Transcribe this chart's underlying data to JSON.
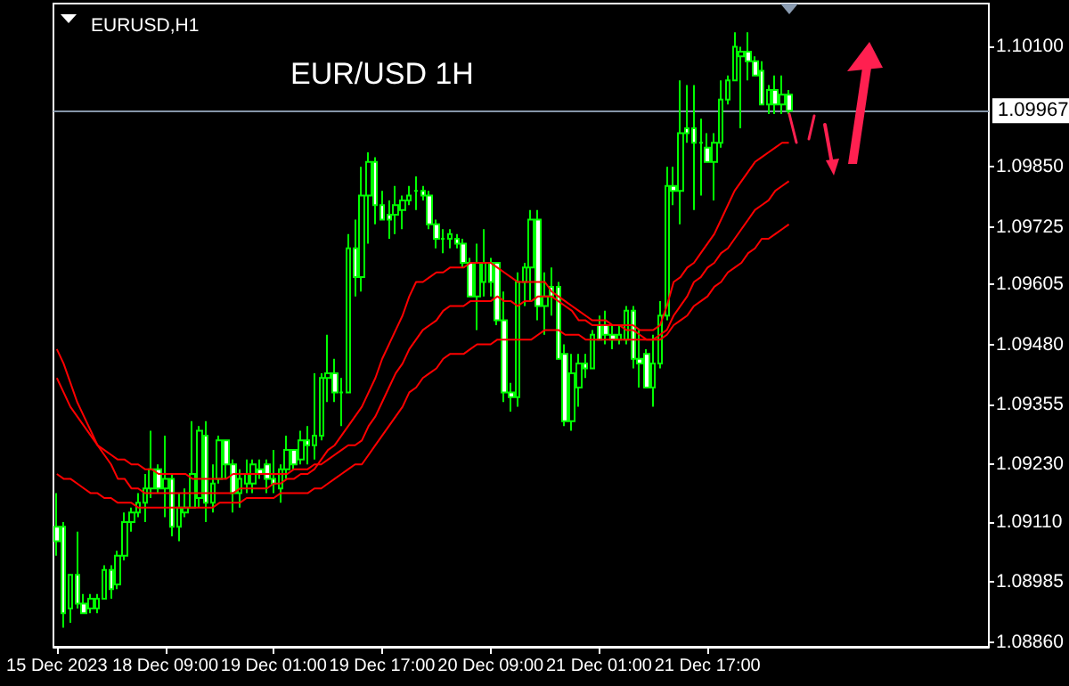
{
  "chart_data": {
    "type": "candlestick",
    "title": "EUR/USD 1H",
    "subtitle": "EURUSD,H1",
    "categories": [
      "15 Dec 2023",
      null,
      null,
      null,
      null,
      null,
      null,
      null,
      null,
      null,
      null,
      null,
      null,
      null,
      null,
      null,
      "18 Dec 09:00",
      null,
      null,
      null,
      null,
      null,
      null,
      null,
      null,
      null,
      null,
      null,
      null,
      null,
      null,
      null,
      "19 Dec 01:00",
      null,
      null,
      null,
      null,
      null,
      null,
      null,
      null,
      null,
      null,
      null,
      null,
      null,
      null,
      null,
      "19 Dec 17:00",
      null,
      null,
      null,
      null,
      null,
      null,
      null,
      null,
      null,
      null,
      null,
      null,
      null,
      null,
      null,
      "20 Dec 09:00",
      null,
      null,
      null,
      null,
      null,
      null,
      null,
      null,
      null,
      null,
      null,
      null,
      null,
      null,
      null,
      "21 Dec 01:00",
      null,
      null,
      null,
      null,
      null,
      null,
      null,
      null,
      null,
      null,
      null,
      null,
      null,
      null,
      null,
      "21 Dec 17:00",
      null,
      null,
      null,
      null,
      null,
      null,
      null,
      null,
      null,
      null,
      null,
      null,
      null,
      null,
      null,
      null,
      null,
      null,
      null,
      null,
      null,
      null,
      null,
      null,
      null,
      null,
      null,
      null,
      null,
      null,
      null,
      null,
      null,
      null,
      null,
      null,
      null,
      null,
      null,
      null,
      null
    ],
    "color": "#00ff00",
    "ohlc": [
      [
        1.091,
        1.0917,
        1.0904,
        1.0907
      ],
      [
        1.091,
        1.0911,
        1.0889,
        1.0892
      ],
      [
        1.0893,
        1.09,
        1.089,
        1.09
      ],
      [
        1.09,
        1.0909,
        1.0893,
        1.0894
      ],
      [
        1.0894,
        1.0896,
        1.0892,
        1.0892
      ],
      [
        1.0893,
        1.0896,
        1.0892,
        1.0895
      ],
      [
        1.0893,
        1.0896,
        1.0892,
        1.0895
      ],
      [
        1.0895,
        1.0902,
        1.0895,
        1.0901
      ],
      [
        1.0901,
        1.0902,
        1.0895,
        1.0897
      ],
      [
        1.0898,
        1.0905,
        1.0897,
        1.0904
      ],
      [
        1.0904,
        1.0913,
        1.0903,
        1.0911
      ],
      [
        1.0911,
        1.0914,
        1.0909,
        1.0913
      ],
      [
        1.0913,
        1.0917,
        1.0912,
        1.0915
      ],
      [
        1.0915,
        1.0921,
        1.0911,
        1.0918
      ],
      [
        1.0918,
        1.093,
        1.0916,
        1.0922
      ],
      [
        1.0922,
        1.0923,
        1.0917,
        1.0918
      ],
      [
        1.0918,
        1.0929,
        1.0912,
        1.092
      ],
      [
        1.092,
        1.0921,
        1.0908,
        1.091
      ],
      [
        1.091,
        1.0917,
        1.0907,
        1.0914
      ],
      [
        1.0913,
        1.0918,
        1.0912,
        1.0914
      ],
      [
        1.0914,
        1.0932,
        1.0914,
        1.0921
      ],
      [
        1.0916,
        1.0931,
        1.0914,
        1.093
      ],
      [
        1.0929,
        1.0932,
        1.0911,
        1.0915
      ],
      [
        1.0915,
        1.0923,
        1.0913,
        1.0919
      ],
      [
        1.092,
        1.0929,
        1.0919,
        1.0928
      ],
      [
        1.0928,
        1.0928,
        1.092,
        1.0923
      ],
      [
        1.0923,
        1.0924,
        1.0913,
        1.0917
      ],
      [
        1.0917,
        1.0922,
        1.0914,
        1.092
      ],
      [
        1.0919,
        1.0924,
        1.0917,
        1.0921
      ],
      [
        1.0919,
        1.0924,
        1.0917,
        1.0923
      ],
      [
        1.0922,
        1.0924,
        1.092,
        1.0921
      ],
      [
        1.0923,
        1.0924,
        1.0917,
        1.092
      ],
      [
        1.092,
        1.0926,
        1.0917,
        1.0919
      ],
      [
        1.0918,
        1.0923,
        1.0915,
        1.0922
      ],
      [
        1.0922,
        1.0929,
        1.092,
        1.0926
      ],
      [
        1.0926,
        1.0926,
        1.0922,
        1.0923
      ],
      [
        1.0924,
        1.093,
        1.0923,
        1.0928
      ],
      [
        1.0928,
        1.0931,
        1.0923,
        1.0927
      ],
      [
        1.0927,
        1.0942,
        1.0924,
        1.0929
      ],
      [
        1.0929,
        1.0942,
        1.0928,
        1.0941
      ],
      [
        1.0941,
        1.095,
        1.0936,
        1.0942
      ],
      [
        1.0942,
        1.0945,
        1.0936,
        1.0938
      ],
      [
        1.0938,
        1.0941,
        1.0931,
        1.0938
      ],
      [
        1.0938,
        1.0971,
        1.0938,
        1.0968
      ],
      [
        1.0968,
        1.0974,
        1.0958,
        1.0962
      ],
      [
        1.0962,
        1.0985,
        1.0959,
        1.0979
      ],
      [
        1.0979,
        1.0988,
        1.0969,
        1.0986
      ],
      [
        1.0986,
        1.0987,
        1.0973,
        1.0977
      ],
      [
        1.0977,
        1.098,
        1.0974,
        1.0974
      ],
      [
        1.0975,
        1.0978,
        1.097,
        1.0974
      ],
      [
        1.0975,
        1.0981,
        1.0971,
        1.0977
      ],
      [
        1.0976,
        1.0979,
        1.0972,
        1.0978
      ],
      [
        1.0978,
        1.0981,
        1.0977,
        1.0979
      ],
      [
        1.098,
        1.0983,
        1.0976,
        1.098
      ],
      [
        1.098,
        1.0981,
        1.0978,
        1.0979
      ],
      [
        1.0979,
        1.098,
        1.0972,
        1.0973
      ],
      [
        1.0973,
        1.0974,
        1.0968,
        1.097
      ],
      [
        1.097,
        1.0972,
        1.0967,
        1.097
      ],
      [
        1.097,
        1.0972,
        1.0968,
        1.0971
      ],
      [
        1.097,
        1.0971,
        1.0968,
        1.0969
      ],
      [
        1.0969,
        1.097,
        1.0964,
        1.0965
      ],
      [
        1.0965,
        1.0966,
        1.0958,
        1.0958
      ],
      [
        1.0958,
        1.0969,
        1.0951,
        1.0965
      ],
      [
        1.0961,
        1.0972,
        1.0958,
        1.0965
      ],
      [
        1.0965,
        1.0966,
        1.0958,
        1.0961
      ],
      [
        1.0965,
        1.0965,
        1.0952,
        1.0953
      ],
      [
        1.0953,
        1.0959,
        1.0936,
        1.0938
      ],
      [
        1.0938,
        1.094,
        1.0934,
        1.0937
      ],
      [
        1.0937,
        1.0963,
        1.0935,
        1.0961
      ],
      [
        1.0961,
        1.0965,
        1.0956,
        1.0964
      ],
      [
        1.0964,
        1.0976,
        1.0957,
        1.0974
      ],
      [
        1.0974,
        1.0976,
        1.0953,
        1.0956
      ],
      [
        1.0956,
        1.0963,
        1.095,
        1.0958
      ],
      [
        1.096,
        1.0964,
        1.0954,
        1.0958
      ],
      [
        1.096,
        1.0961,
        1.0945,
        1.0945
      ],
      [
        1.0946,
        1.0948,
        1.0931,
        1.0932
      ],
      [
        1.0932,
        1.0946,
        1.093,
        1.0942
      ],
      [
        1.0939,
        1.0946,
        1.0935,
        1.0944
      ],
      [
        1.0944,
        1.0946,
        1.0941,
        1.0943
      ],
      [
        1.0943,
        1.0951,
        1.0943,
        1.095
      ],
      [
        1.0952,
        1.0954,
        1.0949,
        1.0949
      ],
      [
        1.0952,
        1.0955,
        1.0948,
        1.095
      ],
      [
        1.095,
        1.0952,
        1.0947,
        1.0949
      ],
      [
        1.0949,
        1.0952,
        1.0948,
        1.095
      ],
      [
        1.0949,
        1.0956,
        1.0948,
        1.0955
      ],
      [
        1.0955,
        1.0956,
        1.0943,
        1.0945
      ],
      [
        1.0945,
        1.0951,
        1.0939,
        1.0944
      ],
      [
        1.0946,
        1.0947,
        1.0939,
        1.0939
      ],
      [
        1.0939,
        1.095,
        1.0935,
        1.0944
      ],
      [
        1.0944,
        1.0957,
        1.0943,
        1.0954
      ],
      [
        1.0954,
        1.0985,
        1.0953,
        1.0981
      ],
      [
        1.0981,
        1.0985,
        1.0977,
        1.098
      ],
      [
        1.098,
        1.1003,
        1.0973,
        1.0992
      ],
      [
        1.0993,
        1.1002,
        1.099,
        1.0992
      ],
      [
        1.0993,
        1.1002,
        1.0976,
        1.099
      ],
      [
        1.099,
        1.0995,
        1.0979,
        1.099
      ],
      [
        1.0989,
        1.0992,
        1.0986,
        1.0986
      ],
      [
        1.0986,
        1.0992,
        1.0978,
        1.099
      ],
      [
        1.099,
        1.1003,
        1.0989,
        1.0999
      ],
      [
        1.0999,
        1.1004,
        1.0998,
        1.1003
      ],
      [
        1.1003,
        1.1013,
        1.1003,
        1.101
      ],
      [
        1.1008,
        1.101,
        1.0993,
        1.1009
      ],
      [
        1.1009,
        1.1013,
        1.1003,
        1.1007
      ],
      [
        1.1007,
        1.1008,
        1.1004,
        1.1004
      ],
      [
        1.1005,
        1.1007,
        1.0998,
        1.0998
      ],
      [
        1.0998,
        1.1002,
        1.0996,
        1.1001
      ],
      [
        1.1001,
        1.1004,
        1.0996,
        1.0998
      ],
      [
        1.0998,
        1.1004,
        1.0996,
        1.1
      ],
      [
        1.1,
        1.1001,
        1.0996,
        1.09967
      ],
      null,
      null,
      null,
      null,
      null,
      null,
      null,
      null,
      null,
      null,
      null,
      null,
      null,
      null,
      null,
      null,
      null,
      null,
      null,
      null,
      null,
      null,
      null,
      null,
      null,
      null,
      null,
      null,
      null
    ],
    "series": [
      {
        "type": "line",
        "color": "#ff0000",
        "values": [
          1.0947,
          1.0944,
          1.094,
          1.0936,
          1.0933,
          1.093,
          1.0927,
          1.0925,
          1.0923,
          1.092,
          1.092,
          1.0918,
          1.0918,
          1.0917,
          1.0917,
          1.0917,
          1.0917,
          1.0917,
          1.0917,
          1.0917,
          1.0917,
          1.0917,
          1.0917,
          1.0917,
          1.0917,
          1.0917,
          1.0917,
          1.0918,
          1.0918,
          1.0918,
          1.0918,
          1.0918,
          1.0919,
          1.0919,
          1.092,
          1.092,
          1.0921,
          1.0921,
          1.0922,
          1.0924,
          1.0926,
          1.0927,
          1.0929,
          1.0931,
          1.0933,
          1.0935,
          1.0938,
          1.0941,
          1.0945,
          1.0948,
          1.0951,
          1.0954,
          1.0958,
          1.0961,
          1.0961,
          1.0962,
          1.0963,
          1.0963,
          1.0964,
          1.0964,
          1.0964,
          1.0965,
          1.0965,
          1.0965,
          1.0965,
          1.0964,
          1.0963,
          1.0962,
          1.0961,
          1.0961,
          1.0961,
          1.0961,
          1.0961,
          1.0959,
          1.0958,
          1.0957,
          1.0956,
          1.0955,
          1.0954,
          1.0953,
          1.0953,
          1.0953,
          1.0952,
          1.0952,
          1.0952,
          1.0952,
          1.0951,
          1.0951,
          1.0951,
          1.0952,
          1.0956,
          1.0961,
          1.0962,
          1.0964,
          1.0965,
          1.0967,
          1.0969,
          1.0971,
          1.0974,
          1.0977,
          1.098,
          1.0982,
          1.0984,
          1.0986,
          1.0987,
          1.0988,
          1.0989,
          1.099,
          1.099,
          null,
          null,
          null,
          null,
          null,
          null,
          null,
          null,
          null,
          null,
          null,
          null,
          null,
          null,
          null,
          null,
          null,
          null,
          null,
          null,
          null,
          null,
          null,
          null,
          null,
          null,
          null,
          null,
          null
        ]
      },
      {
        "type": "line",
        "color": "#ff0000",
        "values": [
          1.0941,
          1.0938,
          1.0935,
          1.0933,
          1.0931,
          1.0929,
          1.0927,
          1.0926,
          1.0925,
          1.0924,
          1.0924,
          1.0923,
          1.0923,
          1.0922,
          1.0922,
          1.0921,
          1.0921,
          1.0921,
          1.0921,
          1.0921,
          1.092,
          1.092,
          1.092,
          1.092,
          1.092,
          1.092,
          1.0921,
          1.0921,
          1.0921,
          1.0921,
          1.0921,
          1.0921,
          1.0921,
          1.0921,
          1.0921,
          1.0922,
          1.0922,
          1.0922,
          1.0923,
          1.0923,
          1.0924,
          1.0925,
          1.0926,
          1.0927,
          1.0927,
          1.0928,
          1.0931,
          1.0933,
          1.0936,
          1.0939,
          1.0942,
          1.0944,
          1.0947,
          1.0949,
          1.0951,
          1.0952,
          1.0953,
          1.0955,
          1.0956,
          1.0956,
          1.0956,
          1.0957,
          1.0957,
          1.0957,
          1.0957,
          1.0958,
          1.0957,
          1.0957,
          1.0956,
          1.0957,
          1.0957,
          1.0958,
          1.0958,
          1.0958,
          1.0957,
          1.0956,
          1.0955,
          1.0953,
          1.0953,
          1.0952,
          1.0952,
          1.0952,
          1.0952,
          1.0952,
          1.0951,
          1.0951,
          1.095,
          1.0949,
          1.0949,
          1.095,
          1.0951,
          1.0954,
          1.0956,
          1.0958,
          1.0961,
          1.0962,
          1.0964,
          1.0965,
          1.0967,
          1.0968,
          1.097,
          1.0972,
          1.0974,
          1.0976,
          1.0977,
          1.0978,
          1.098,
          1.0981,
          1.0982,
          null,
          null,
          null,
          null,
          null,
          null,
          null,
          null,
          null,
          null,
          null,
          null,
          null,
          null,
          null,
          null,
          null,
          null,
          null,
          null,
          null,
          null,
          null,
          null,
          null,
          null,
          null,
          null,
          null
        ]
      },
      {
        "type": "line",
        "color": "#ff0000",
        "values": [
          1.0921,
          1.092,
          1.092,
          1.0919,
          1.0918,
          1.0917,
          1.0917,
          1.0916,
          1.0916,
          1.0915,
          1.0915,
          1.0915,
          1.0914,
          1.0914,
          1.0914,
          1.0914,
          1.0914,
          1.0914,
          1.0914,
          1.0914,
          1.0914,
          1.0914,
          1.0914,
          1.0914,
          1.0915,
          1.0915,
          1.0915,
          1.0915,
          1.0916,
          1.0916,
          1.0916,
          1.0916,
          1.0916,
          1.0917,
          1.0917,
          1.0917,
          1.0917,
          1.0917,
          1.0918,
          1.0918,
          1.0919,
          1.092,
          1.0921,
          1.0922,
          1.0923,
          1.0923,
          1.0925,
          1.0927,
          1.0929,
          1.0931,
          1.0933,
          1.0935,
          1.0938,
          1.0939,
          1.0941,
          1.0942,
          1.0943,
          1.0945,
          1.0946,
          1.0946,
          1.0946,
          1.0947,
          1.0948,
          1.0948,
          1.0948,
          1.0949,
          1.0949,
          1.0949,
          1.0949,
          1.0949,
          1.0949,
          1.095,
          1.0951,
          1.0951,
          1.0951,
          1.095,
          1.095,
          1.095,
          1.0949,
          1.0949,
          1.0949,
          1.0949,
          1.0949,
          1.0949,
          1.0949,
          1.0949,
          1.0949,
          1.0949,
          1.0949,
          1.0949,
          1.095,
          1.0952,
          1.0953,
          1.0954,
          1.0956,
          1.0957,
          1.0958,
          1.096,
          1.0961,
          1.0963,
          1.0964,
          1.0965,
          1.0967,
          1.0968,
          1.097,
          1.097,
          1.0971,
          1.0972,
          1.0973,
          null,
          null,
          null,
          null,
          null,
          null,
          null,
          null,
          null,
          null,
          null,
          null,
          null,
          null,
          null,
          null,
          null,
          null,
          null,
          null,
          null,
          null,
          null,
          null,
          null,
          null,
          null,
          null,
          null
        ]
      }
    ],
    "marker": "none",
    "line_style": "solid",
    "ylim": [
      1.0885,
      1.1019
    ],
    "yticks": [
      {
        "value": 1.101,
        "label": "1.10100"
      },
      {
        "value": 1.0985,
        "label": "1.09850"
      },
      {
        "value": 1.09725,
        "label": "1.09725"
      },
      {
        "value": 1.09605,
        "label": "1.09605"
      },
      {
        "value": 1.0948,
        "label": "1.09480"
      },
      {
        "value": 1.09355,
        "label": "1.09355"
      },
      {
        "value": 1.0923,
        "label": "1.09230"
      },
      {
        "value": 1.0911,
        "label": "1.09110"
      },
      {
        "value": 1.08985,
        "label": "1.08985"
      },
      {
        "value": 1.0886,
        "label": "1.08860"
      }
    ],
    "ref_lines": [
      {
        "axis": "y",
        "value": 1.09967,
        "label": "1.09967",
        "color": "#8595a8"
      }
    ]
  }
}
